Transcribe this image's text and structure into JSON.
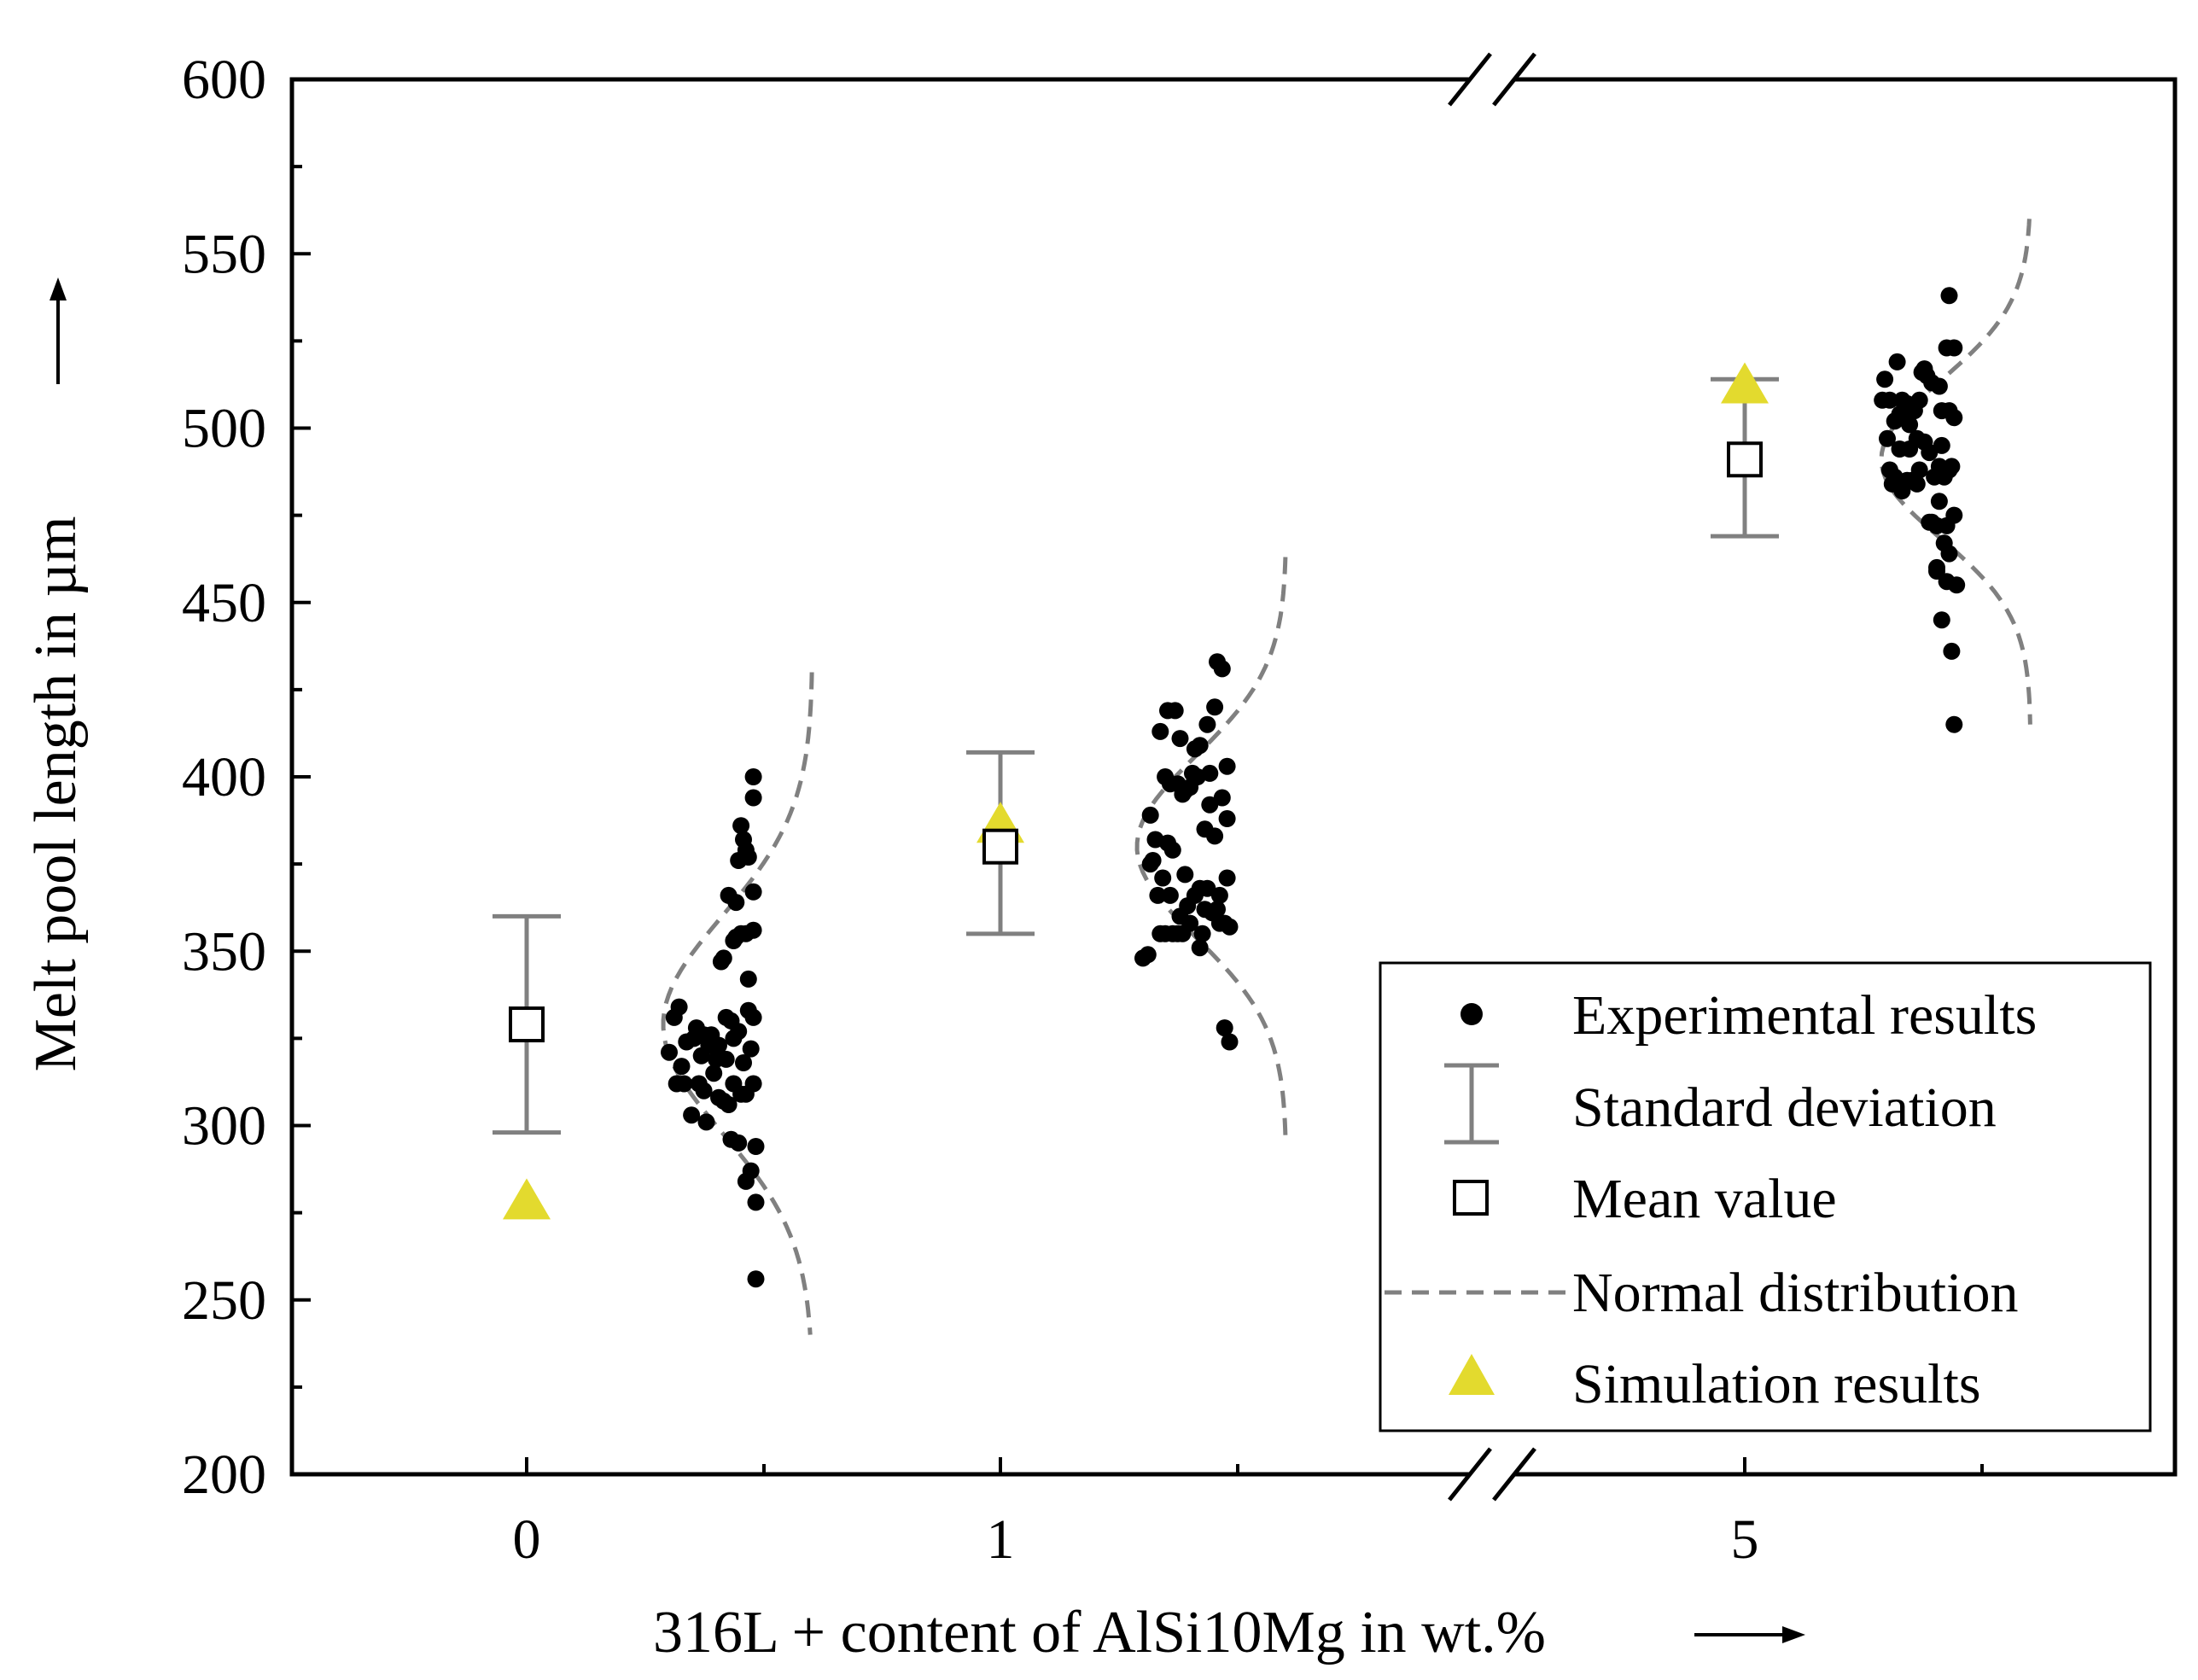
{
  "chart_data": {
    "type": "scatter",
    "title": "",
    "xlabel": "316L + content of AlSi10Mg in wt.%",
    "ylabel": "Melt pool length in µm",
    "ylim": [
      200,
      600
    ],
    "yticks": [
      "200",
      "250",
      "300",
      "350",
      "400",
      "450",
      "500",
      "550",
      "600"
    ],
    "categories": [
      "0",
      "1",
      "5"
    ],
    "axis_break": "between 1 and 5",
    "legend": {
      "placement": "bottom-right",
      "entries": [
        {
          "key": "experimental",
          "label": "Experimental results"
        },
        {
          "key": "std",
          "label": "Standard deviation"
        },
        {
          "key": "mean",
          "label": "Mean value"
        },
        {
          "key": "normal",
          "label": "Normal distribution"
        },
        {
          "key": "simulation",
          "label": "Simulation results"
        }
      ]
    },
    "colors": {
      "experimental": "#000000",
      "std": "#808080",
      "mean": "#000000",
      "normal": "#808080",
      "simulation": "#e3da2e"
    },
    "groups": [
      {
        "category": "0",
        "mean": 329,
        "std_low": 298,
        "std_high": 360,
        "simulation": 278,
        "normal_range": [
          240,
          430
        ],
        "experimental": [
          [
            0.3,
            321
          ],
          [
            0.32,
            331
          ],
          [
            0.33,
            312
          ],
          [
            0.34,
            334
          ],
          [
            0.35,
            317
          ],
          [
            0.36,
            312
          ],
          [
            0.37,
            324
          ],
          [
            0.39,
            303
          ],
          [
            0.4,
            325
          ],
          [
            0.41,
            328
          ],
          [
            0.42,
            312
          ],
          [
            0.43,
            320
          ],
          [
            0.44,
            310
          ],
          [
            0.44,
            326
          ],
          [
            0.45,
            301
          ],
          [
            0.46,
            323
          ],
          [
            0.47,
            326
          ],
          [
            0.48,
            315
          ],
          [
            0.49,
            319
          ],
          [
            0.5,
            323
          ],
          [
            0.5,
            308
          ],
          [
            0.51,
            347
          ],
          [
            0.52,
            348
          ],
          [
            0.52,
            307
          ],
          [
            0.53,
            331
          ],
          [
            0.53,
            319
          ],
          [
            0.54,
            366
          ],
          [
            0.54,
            306
          ],
          [
            0.55,
            330
          ],
          [
            0.55,
            296
          ],
          [
            0.56,
            353
          ],
          [
            0.56,
            312
          ],
          [
            0.56,
            325
          ],
          [
            0.57,
            354
          ],
          [
            0.57,
            364
          ],
          [
            0.58,
            376
          ],
          [
            0.58,
            327
          ],
          [
            0.58,
            295
          ],
          [
            0.59,
            309
          ],
          [
            0.59,
            386
          ],
          [
            0.59,
            355
          ],
          [
            0.6,
            318
          ],
          [
            0.6,
            382
          ],
          [
            0.61,
            355
          ],
          [
            0.61,
            379
          ],
          [
            0.61,
            309
          ],
          [
            0.61,
            284
          ],
          [
            0.62,
            377
          ],
          [
            0.62,
            333
          ],
          [
            0.62,
            342
          ],
          [
            0.63,
            287
          ],
          [
            0.63,
            322
          ],
          [
            0.64,
            400
          ],
          [
            0.64,
            394
          ],
          [
            0.64,
            356
          ],
          [
            0.64,
            367
          ],
          [
            0.64,
            331
          ],
          [
            0.64,
            312
          ],
          [
            0.65,
            294
          ],
          [
            0.65,
            278
          ],
          [
            0.65,
            256
          ]
        ]
      },
      {
        "category": "1",
        "mean": 380,
        "std_low": 355,
        "std_high": 407,
        "simulation": 386,
        "normal_range": [
          295,
          463
        ],
        "experimental": [
          [
            0.3,
            348
          ],
          [
            0.32,
            349
          ],
          [
            0.33,
            389
          ],
          [
            0.33,
            375
          ],
          [
            0.34,
            376
          ],
          [
            0.35,
            382
          ],
          [
            0.36,
            366
          ],
          [
            0.37,
            355
          ],
          [
            0.37,
            413
          ],
          [
            0.38,
            371
          ],
          [
            0.39,
            400
          ],
          [
            0.39,
            355
          ],
          [
            0.4,
            381
          ],
          [
            0.4,
            419
          ],
          [
            0.41,
            398
          ],
          [
            0.41,
            366
          ],
          [
            0.42,
            379
          ],
          [
            0.42,
            355
          ],
          [
            0.43,
            419
          ],
          [
            0.44,
            398
          ],
          [
            0.44,
            355
          ],
          [
            0.45,
            360
          ],
          [
            0.45,
            411
          ],
          [
            0.46,
            355
          ],
          [
            0.46,
            395
          ],
          [
            0.47,
            372
          ],
          [
            0.47,
            396
          ],
          [
            0.48,
            363
          ],
          [
            0.49,
            397
          ],
          [
            0.49,
            358
          ],
          [
            0.5,
            401
          ],
          [
            0.51,
            366
          ],
          [
            0.51,
            408
          ],
          [
            0.52,
            400
          ],
          [
            0.53,
            351
          ],
          [
            0.53,
            368
          ],
          [
            0.53,
            409
          ],
          [
            0.54,
            355
          ],
          [
            0.55,
            362
          ],
          [
            0.55,
            385
          ],
          [
            0.56,
            368
          ],
          [
            0.56,
            415
          ],
          [
            0.57,
            401
          ],
          [
            0.57,
            392
          ],
          [
            0.58,
            361
          ],
          [
            0.59,
            420
          ],
          [
            0.59,
            383
          ],
          [
            0.6,
            362
          ],
          [
            0.6,
            433
          ],
          [
            0.61,
            358
          ],
          [
            0.61,
            366
          ],
          [
            0.62,
            431
          ],
          [
            0.62,
            394
          ],
          [
            0.63,
            328
          ],
          [
            0.63,
            358
          ],
          [
            0.64,
            388
          ],
          [
            0.64,
            403
          ],
          [
            0.64,
            371
          ],
          [
            0.65,
            357
          ],
          [
            0.65,
            324
          ]
        ]
      },
      {
        "category": "5",
        "mean": 491,
        "std_low": 469,
        "std_high": 514,
        "simulation": 512,
        "normal_range": [
          415,
          560
        ],
        "experimental": [
          [
            0.28,
            508
          ],
          [
            0.29,
            514
          ],
          [
            0.3,
            497
          ],
          [
            0.31,
            508
          ],
          [
            0.31,
            488
          ],
          [
            0.32,
            484
          ],
          [
            0.33,
            502
          ],
          [
            0.33,
            486
          ],
          [
            0.34,
            519
          ],
          [
            0.34,
            485
          ],
          [
            0.35,
            504
          ],
          [
            0.35,
            494
          ],
          [
            0.36,
            508
          ],
          [
            0.36,
            482
          ],
          [
            0.37,
            503
          ],
          [
            0.38,
            485
          ],
          [
            0.38,
            507
          ],
          [
            0.39,
            494
          ],
          [
            0.39,
            501
          ],
          [
            0.4,
            485
          ],
          [
            0.4,
            505
          ],
          [
            0.41,
            505
          ],
          [
            0.42,
            484
          ],
          [
            0.42,
            497
          ],
          [
            0.43,
            488
          ],
          [
            0.43,
            508
          ],
          [
            0.44,
            516
          ],
          [
            0.45,
            496
          ],
          [
            0.45,
            517
          ],
          [
            0.46,
            515
          ],
          [
            0.47,
            493
          ],
          [
            0.47,
            473
          ],
          [
            0.48,
            513
          ],
          [
            0.48,
            473
          ],
          [
            0.49,
            486
          ],
          [
            0.5,
            472
          ],
          [
            0.5,
            460
          ],
          [
            0.5,
            459
          ],
          [
            0.51,
            512
          ],
          [
            0.51,
            489
          ],
          [
            0.51,
            479
          ],
          [
            0.52,
            445
          ],
          [
            0.52,
            495
          ],
          [
            0.52,
            505
          ],
          [
            0.53,
            486
          ],
          [
            0.53,
            467
          ],
          [
            0.54,
            523
          ],
          [
            0.54,
            472
          ],
          [
            0.54,
            456
          ],
          [
            0.55,
            505
          ],
          [
            0.55,
            488
          ],
          [
            0.55,
            464
          ],
          [
            0.55,
            538
          ],
          [
            0.56,
            436
          ],
          [
            0.56,
            489
          ],
          [
            0.57,
            523
          ],
          [
            0.57,
            475
          ],
          [
            0.57,
            503
          ],
          [
            0.57,
            415
          ],
          [
            0.58,
            455
          ]
        ]
      }
    ]
  }
}
